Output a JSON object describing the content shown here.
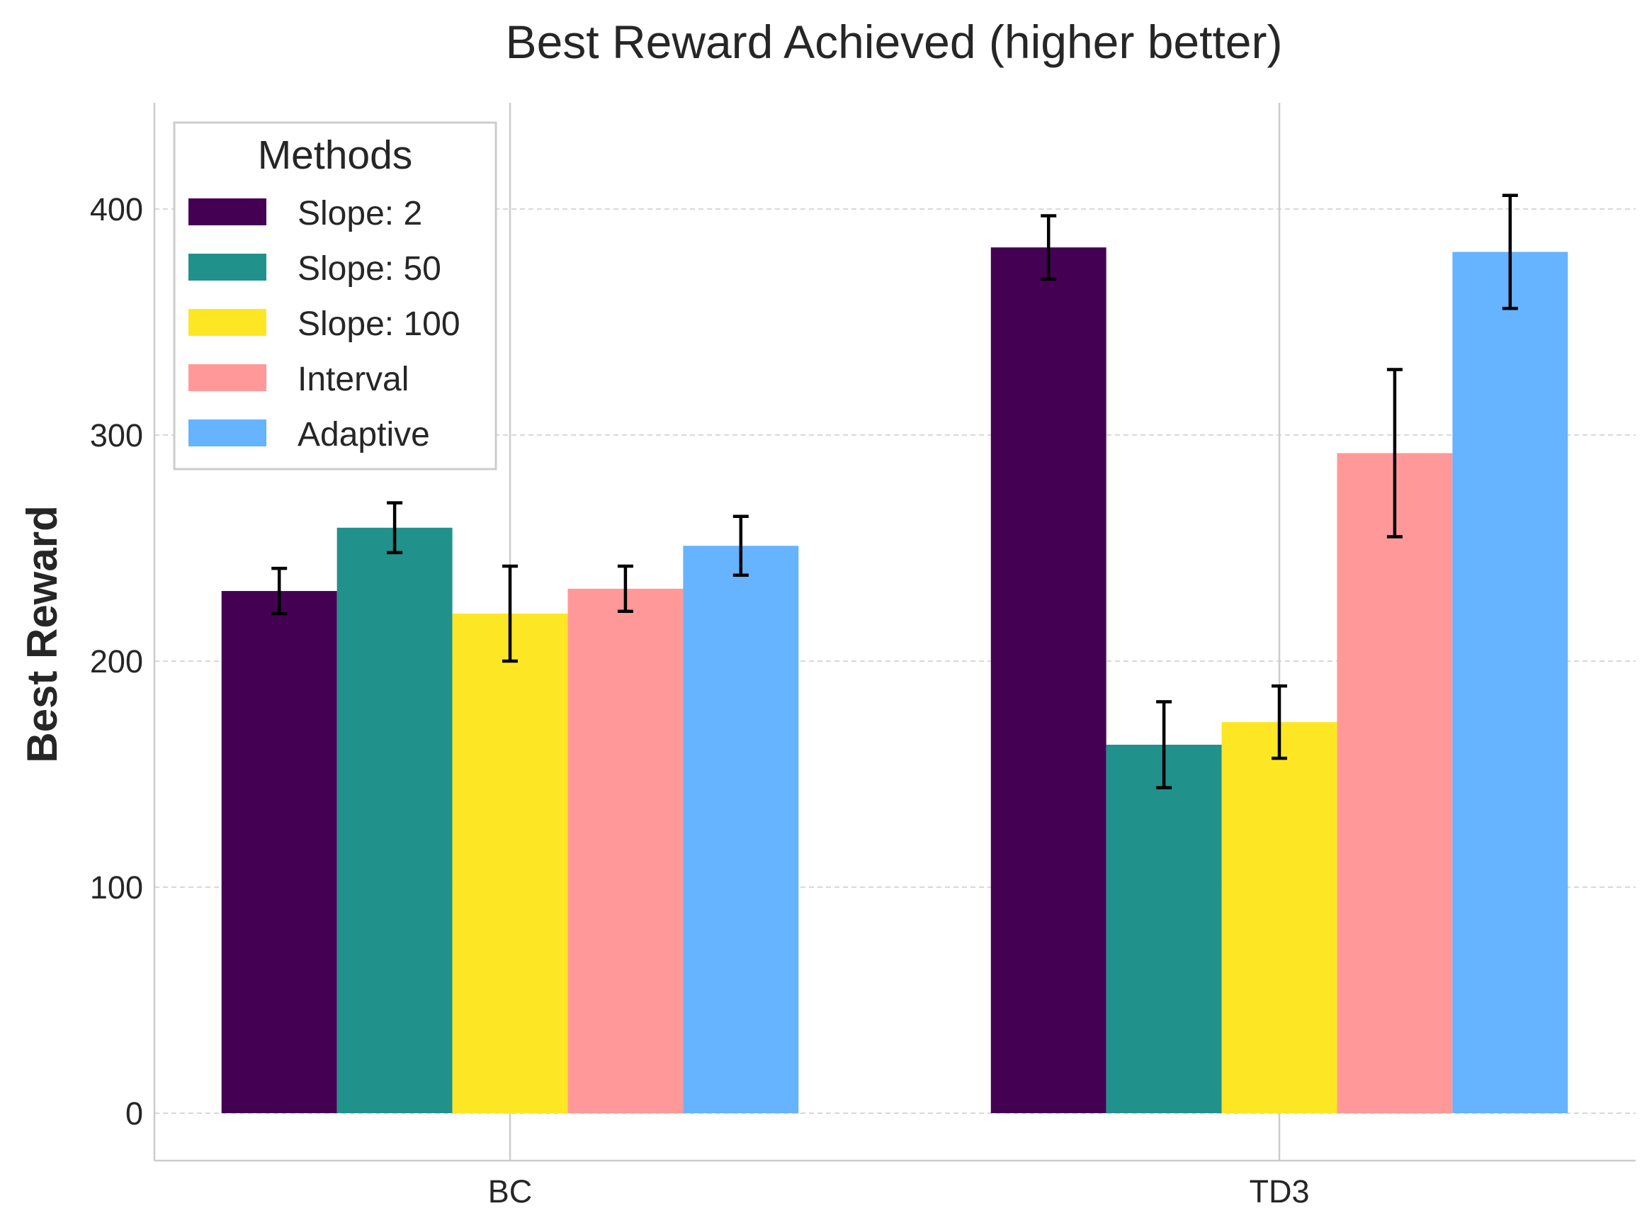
{
  "chart_data": {
    "type": "bar",
    "title": "Best Reward Achieved (higher better)",
    "xlabel": "",
    "ylabel": "Best Reward",
    "categories": [
      "BC",
      "TD3"
    ],
    "ylim": [
      -21,
      447
    ],
    "yticks": [
      0,
      100,
      200,
      300,
      400
    ],
    "grid": "y-dashed",
    "legend": {
      "title": "Methods",
      "placement": "top-left"
    },
    "series": [
      {
        "name": "Slope: 2",
        "color": "#440154",
        "values": [
          231,
          383
        ],
        "errors": [
          10,
          14
        ]
      },
      {
        "name": "Slope: 50",
        "color": "#21918c",
        "values": [
          259,
          163
        ],
        "errors": [
          11,
          19
        ]
      },
      {
        "name": "Slope: 100",
        "color": "#fde725",
        "values": [
          221,
          173
        ],
        "errors": [
          21,
          16
        ]
      },
      {
        "name": "Interval",
        "color": "#ff9999",
        "values": [
          232,
          292
        ],
        "errors": [
          10,
          37
        ]
      },
      {
        "name": "Adaptive",
        "color": "#66b3ff",
        "values": [
          251,
          381
        ],
        "errors": [
          13,
          25
        ]
      }
    ]
  }
}
